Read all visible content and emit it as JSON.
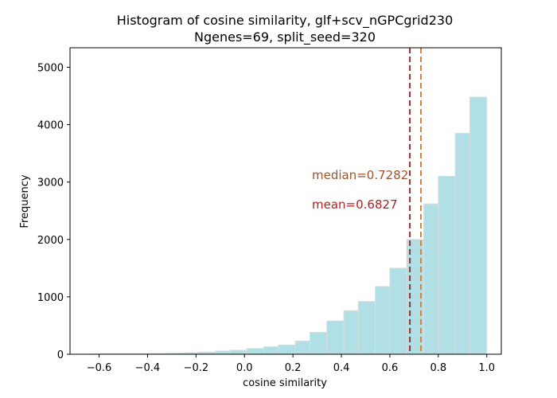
{
  "chart_data": {
    "type": "bar",
    "title": "Histogram of cosine similarity, glf+scv_nGPCgrid230",
    "subtitle": "Ngenes=69, split_seed=320",
    "xlabel": "cosine similarity",
    "ylabel": "Frequency",
    "xlim": [
      -0.72,
      1.06
    ],
    "ylim": [
      0,
      5340
    ],
    "xticks": [
      -0.6,
      -0.4,
      -0.2,
      0.0,
      0.2,
      0.4,
      0.6,
      0.8,
      1.0
    ],
    "xtick_labels": [
      "−0.6",
      "−0.4",
      "−0.2",
      "0.0",
      "0.2",
      "0.4",
      "0.6",
      "0.8",
      "1.0"
    ],
    "yticks": [
      0,
      1000,
      2000,
      3000,
      4000,
      5000
    ],
    "ytick_labels": [
      "0",
      "1000",
      "2000",
      "3000",
      "4000",
      "5000"
    ],
    "bin_edges": [
      -0.65,
      -0.584,
      -0.518,
      -0.452,
      -0.386,
      -0.32,
      -0.254,
      -0.188,
      -0.122,
      -0.056,
      0.01,
      0.076,
      0.142,
      0.208,
      0.274,
      0.34,
      0.406,
      0.472,
      0.538,
      0.604,
      0.67,
      0.736,
      0.802,
      0.868,
      0.934,
      1.0
    ],
    "bins": [
      {
        "x0": -0.65,
        "x1": -0.58,
        "count": 3
      },
      {
        "x0": -0.58,
        "x1": -0.52,
        "count": 5
      },
      {
        "x0": -0.52,
        "x1": -0.45,
        "count": 6
      },
      {
        "x0": -0.45,
        "x1": -0.39,
        "count": 8
      },
      {
        "x0": -0.39,
        "x1": -0.32,
        "count": 10
      },
      {
        "x0": -0.32,
        "x1": -0.25,
        "count": 18
      },
      {
        "x0": -0.25,
        "x1": -0.19,
        "count": 28
      },
      {
        "x0": -0.19,
        "x1": -0.12,
        "count": 38
      },
      {
        "x0": -0.12,
        "x1": -0.06,
        "count": 55
      },
      {
        "x0": -0.06,
        "x1": 0.01,
        "count": 70
      },
      {
        "x0": 0.01,
        "x1": 0.08,
        "count": 100
      },
      {
        "x0": 0.08,
        "x1": 0.14,
        "count": 130
      },
      {
        "x0": 0.14,
        "x1": 0.21,
        "count": 160
      },
      {
        "x0": 0.21,
        "x1": 0.27,
        "count": 230
      },
      {
        "x0": 0.27,
        "x1": 0.34,
        "count": 380
      },
      {
        "x0": 0.34,
        "x1": 0.41,
        "count": 580
      },
      {
        "x0": 0.41,
        "x1": 0.47,
        "count": 760
      },
      {
        "x0": 0.47,
        "x1": 0.54,
        "count": 920
      },
      {
        "x0": 0.54,
        "x1": 0.6,
        "count": 1180
      },
      {
        "x0": 0.6,
        "x1": 0.67,
        "count": 1500
      },
      {
        "x0": 0.67,
        "x1": 0.74,
        "count": 2000
      },
      {
        "x0": 0.74,
        "x1": 0.8,
        "count": 2620
      },
      {
        "x0": 0.8,
        "x1": 0.87,
        "count": 3100
      },
      {
        "x0": 0.87,
        "x1": 0.93,
        "count": 3850
      },
      {
        "x0": 0.93,
        "x1": 1.0,
        "count": 4480
      }
    ],
    "grid": false,
    "bar_color": "#b0dfe5",
    "bar_edge_color": "#dddddd",
    "lines": [
      {
        "name": "median",
        "x": 0.7282,
        "color": "#cd853f",
        "style": "dashed"
      },
      {
        "name": "mean",
        "x": 0.6827,
        "color": "#a52a2a",
        "style": "dashed"
      }
    ],
    "annotations": [
      {
        "text": "median=0.7282",
        "color": "#a0522d"
      },
      {
        "text": "mean=0.6827",
        "color": "#b22222"
      }
    ]
  }
}
